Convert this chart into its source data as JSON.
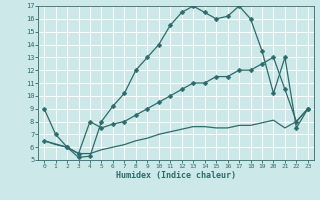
{
  "xlabel": "Humidex (Indice chaleur)",
  "background_color": "#cce8e8",
  "grid_color": "#ffffff",
  "line_color": "#2d6b6b",
  "xlim": [
    -0.5,
    23.5
  ],
  "ylim": [
    5,
    17
  ],
  "xticks": [
    0,
    1,
    2,
    3,
    4,
    5,
    6,
    7,
    8,
    9,
    10,
    11,
    12,
    13,
    14,
    15,
    16,
    17,
    18,
    19,
    20,
    21,
    22,
    23
  ],
  "yticks": [
    5,
    6,
    7,
    8,
    9,
    10,
    11,
    12,
    13,
    14,
    15,
    16,
    17
  ],
  "line1_x": [
    0,
    1,
    2,
    3,
    4,
    5,
    6,
    7,
    8,
    9,
    10,
    11,
    12,
    13,
    14,
    15,
    16,
    17,
    18,
    19,
    20,
    21,
    22,
    23
  ],
  "line1_y": [
    9.0,
    7.0,
    6.0,
    5.2,
    5.3,
    8.0,
    9.2,
    10.2,
    12.0,
    13.0,
    14.0,
    15.5,
    16.5,
    17.0,
    16.5,
    16.0,
    16.2,
    17.0,
    16.0,
    13.5,
    10.2,
    13.0,
    7.5,
    9.0
  ],
  "line2_x": [
    0,
    2,
    3,
    4,
    5,
    6,
    7,
    8,
    9,
    10,
    11,
    12,
    13,
    14,
    15,
    16,
    17,
    18,
    19,
    20,
    21,
    22,
    23
  ],
  "line2_y": [
    6.5,
    6.0,
    5.5,
    8.0,
    7.5,
    7.8,
    8.0,
    8.5,
    9.0,
    9.5,
    10.0,
    10.5,
    11.0,
    11.0,
    11.5,
    11.5,
    12.0,
    12.0,
    12.5,
    13.0,
    10.5,
    8.0,
    9.0
  ],
  "line3_x": [
    0,
    1,
    2,
    3,
    4,
    5,
    6,
    7,
    8,
    9,
    10,
    11,
    12,
    13,
    14,
    15,
    16,
    17,
    18,
    19,
    20,
    21,
    22,
    23
  ],
  "line3_y": [
    6.5,
    6.2,
    6.0,
    5.5,
    5.5,
    5.8,
    6.0,
    6.2,
    6.5,
    6.7,
    7.0,
    7.2,
    7.4,
    7.6,
    7.6,
    7.5,
    7.5,
    7.7,
    7.7,
    7.9,
    8.1,
    7.5,
    8.0,
    9.0
  ]
}
